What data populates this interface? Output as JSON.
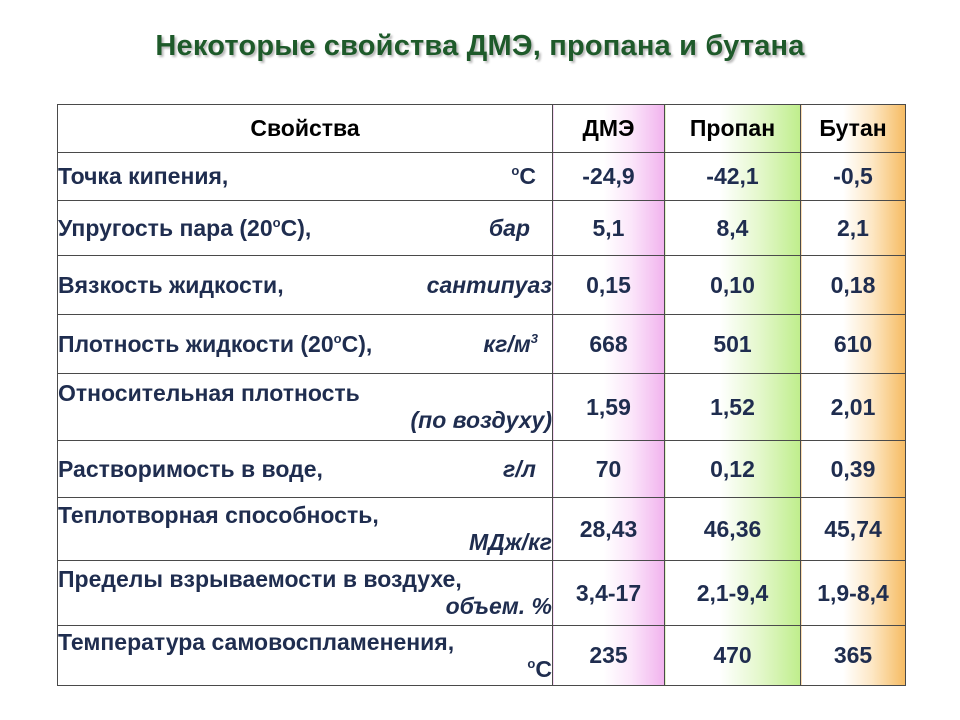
{
  "title": "Некоторые свойства ДМЭ, пропана и бутана",
  "header": {
    "property": "Свойства",
    "dme": "ДМЭ",
    "propane": "Пропан",
    "butane": "Бутан"
  },
  "rows": [
    {
      "name": "Точка кипения,",
      "unit_sup": "o",
      "unit": "C",
      "dme": "-24,9",
      "propane": "-42,1",
      "butane": "-0,5"
    },
    {
      "name_a": "Упругость пара (20",
      "name_sup": "o",
      "name_b": "C),",
      "unit": "бар",
      "dme": "5,1",
      "propane": "8,4",
      "butane": "2,1"
    },
    {
      "name": "Вязкость жидкости,",
      "unit": "сантипуаз",
      "dme": "0,15",
      "propane": "0,10",
      "butane": "0,18"
    },
    {
      "name_a": "Плотность жидкости (20",
      "name_sup": "o",
      "name_b": "C),",
      "unit": "кг/м",
      "unit_sup": "3",
      "dme": "668",
      "propane": "501",
      "butane": "610"
    },
    {
      "name": "Относительная плотность",
      "unit": "(по воздуху)",
      "dme": "1,59",
      "propane": "1,52",
      "butane": "2,01"
    },
    {
      "name": "Растворимость в воде,",
      "unit": "г/л",
      "dme": "70",
      "propane": "0,12",
      "butane": "0,39"
    },
    {
      "name": "Теплотворная способность,",
      "unit": "МДж/кг",
      "dme": "28,43",
      "propane": "46,36",
      "butane": "45,74"
    },
    {
      "name": "Пределы взрываемости в воздухе,",
      "unit": "объем. %",
      "dme": "3,4-17",
      "propane": "2,1-9,4",
      "butane": "1,9-8,4"
    },
    {
      "name": "Температура самовоспламенения,",
      "unit_sup": "o",
      "unit": "C",
      "dme": "235",
      "propane": "470",
      "butane": "365"
    }
  ],
  "colors": {
    "title": "#1e5a2a",
    "dme_accent": "#f1b3ee",
    "propane_accent": "#bfee8c",
    "butane_accent": "#f6bb62"
  }
}
